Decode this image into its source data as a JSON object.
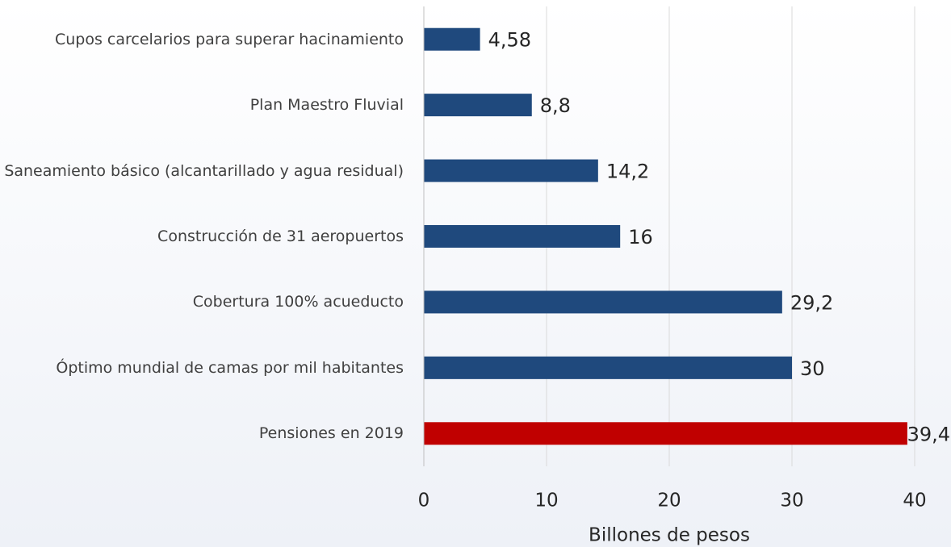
{
  "chart_data": {
    "type": "barh",
    "categories": [
      "Cupos carcelarios para superar hacinamiento",
      "Plan Maestro Fluvial",
      "Saneamiento básico (alcantarillado y agua residual)",
      "Construcción de 31 aeropuertos",
      "Cobertura 100% acueducto",
      "Óptimo mundial de camas por mil habitantes",
      "Pensiones en 2019"
    ],
    "values": [
      4.58,
      8.8,
      14.2,
      16,
      29.2,
      30,
      39.4
    ],
    "value_labels": [
      "4,58",
      "8,8",
      "14,2",
      "16",
      "29,2",
      "30",
      "39,4"
    ],
    "colors": [
      "#1f497d",
      "#1f497d",
      "#1f497d",
      "#1f497d",
      "#1f497d",
      "#1f497d",
      "#c00000"
    ],
    "xlim": [
      0,
      40
    ],
    "xticks": [
      0,
      10,
      20,
      30,
      40
    ],
    "xlabel": "Billones de pesos",
    "grid": true
  }
}
